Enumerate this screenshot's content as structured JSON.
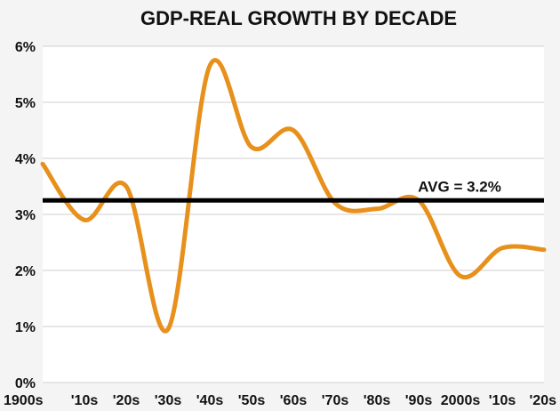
{
  "chart_data": {
    "type": "line",
    "title": "GDP-REAL GROWTH BY DECADE",
    "xlabel": "",
    "ylabel": "",
    "categories": [
      "1900s",
      "'10s",
      "'20s",
      "'30s",
      "'40s",
      "'50s",
      "'60s",
      "'70s",
      "'80s",
      "'90s",
      "2000s",
      "'10s",
      "'20s"
    ],
    "series": [
      {
        "name": "GDP real growth",
        "values": [
          3.9,
          2.9,
          3.5,
          0.95,
          5.65,
          4.2,
          4.5,
          3.2,
          3.1,
          3.25,
          1.9,
          2.4,
          2.37
        ]
      }
    ],
    "y_ticks": [
      "0%",
      "1%",
      "2%",
      "3%",
      "4%",
      "5%",
      "6%"
    ],
    "ylim": [
      0,
      6
    ],
    "grid": true,
    "average": {
      "value": 3.25,
      "label": "AVG = 3.2%"
    },
    "colors": {
      "line": "#e8901c",
      "average": "#000000",
      "grid": "#cfcfcf",
      "background": "#f4f4f4",
      "plot_background": "#ffffff"
    }
  }
}
